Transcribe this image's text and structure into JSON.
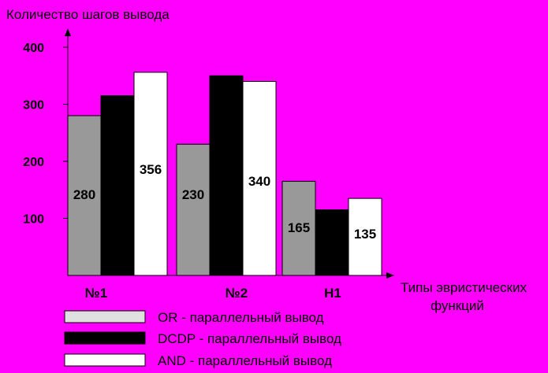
{
  "chart_data": {
    "type": "bar",
    "ylabel": "Количество шагов вывода",
    "xlabel_line1": "Типы эвристических",
    "xlabel_line2": "функций",
    "categories": [
      "№1",
      "№2",
      "H1"
    ],
    "ylim": [
      0,
      400
    ],
    "yticks": [
      100,
      200,
      300,
      400
    ],
    "grid": false,
    "legend_position": "bottom-center",
    "series": [
      {
        "name": "OR - параллельный вывод",
        "color": "#999999",
        "values": [
          280,
          230,
          165
        ],
        "labels": [
          "280",
          "230",
          "165"
        ]
      },
      {
        "name": "DCDP - параллельный вывод",
        "color": "#000000",
        "values": [
          315,
          350,
          115
        ],
        "labels": [
          "",
          "",
          ""
        ]
      },
      {
        "name": "AND - параллельный вывод",
        "color": "#ffffff",
        "values": [
          356,
          340,
          135
        ],
        "labels": [
          "356",
          "340",
          "135"
        ]
      }
    ]
  }
}
